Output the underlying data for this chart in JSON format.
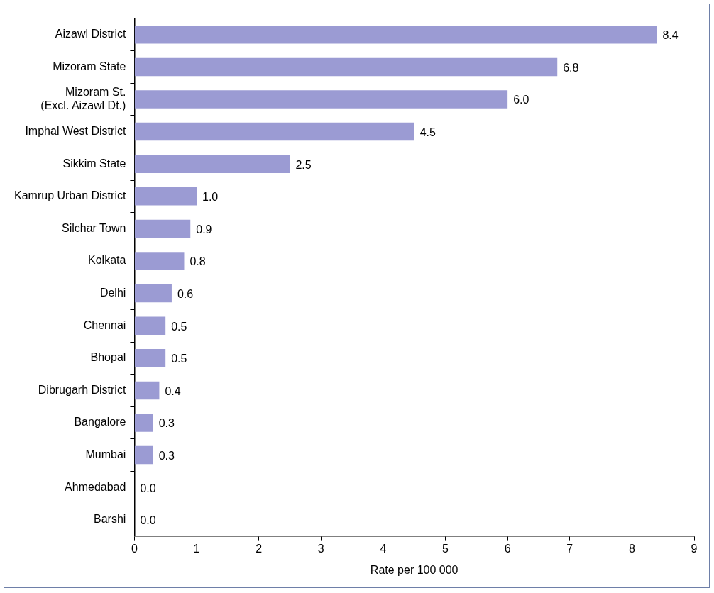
{
  "chart_data": {
    "type": "bar",
    "orientation": "horizontal",
    "xlabel": "Rate per 100 000",
    "categories": [
      "Aizawl District",
      "Mizoram State",
      "Mizoram St.\n(Excl. Aizawl Dt.)",
      "Imphal West District",
      "Sikkim State",
      "Kamrup Urban District",
      "Silchar Town",
      "Kolkata",
      "Delhi",
      "Chennai",
      "Bhopal",
      "Dibrugarh District",
      "Bangalore",
      "Mumbai",
      "Ahmedabad",
      "Barshi"
    ],
    "values": [
      8.4,
      6.8,
      6.0,
      4.5,
      2.5,
      1.0,
      0.9,
      0.8,
      0.6,
      0.5,
      0.5,
      0.4,
      0.3,
      0.3,
      0.0,
      0.0
    ],
    "color": "#9b9bd3",
    "xlim": [
      0,
      9
    ],
    "xticks": [
      0,
      1,
      2,
      3,
      4,
      5,
      6,
      7,
      8,
      9
    ],
    "value_labels": [
      "8.4",
      "6.8",
      "6.0",
      "4.5",
      "2.5",
      "1.0",
      "0.9",
      "0.8",
      "0.6",
      "0.5",
      "0.5",
      "0.4",
      "0.3",
      "0.3",
      "0.0",
      "0.0"
    ]
  }
}
